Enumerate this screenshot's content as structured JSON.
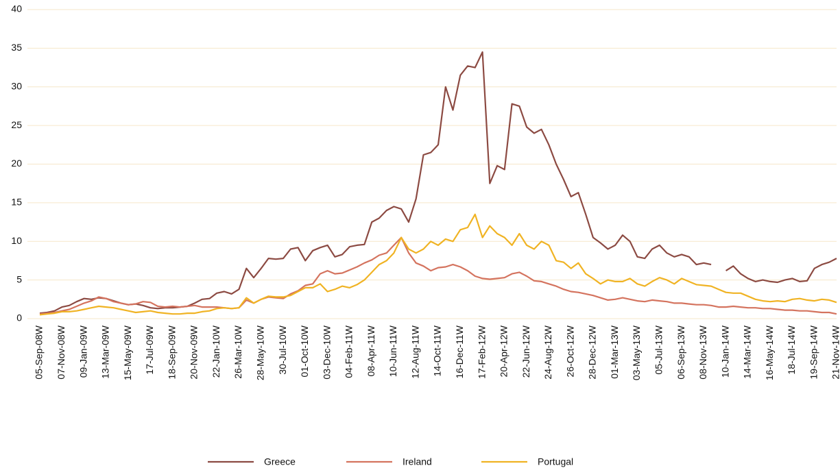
{
  "chart_data": {
    "type": "line",
    "categories": [
      "05-Sep-08W",
      null,
      null,
      "07-Nov-08W",
      null,
      null,
      "09-Jan-09W",
      null,
      null,
      "13-Mar-09W",
      null,
      null,
      "15-May-09W",
      null,
      null,
      "17-Jul-09W",
      null,
      null,
      "18-Sep-09W",
      null,
      null,
      "20-Nov-09W",
      null,
      null,
      "22-Jan-10W",
      null,
      null,
      "26-Mar-10W",
      null,
      null,
      "28-May-10W",
      null,
      null,
      "30-Jul-10W",
      null,
      null,
      "01-Oct-10W",
      null,
      null,
      "03-Dec-10W",
      null,
      null,
      "04-Feb-11W",
      null,
      null,
      "08-Apr-11W",
      null,
      null,
      "10-Jun-11W",
      null,
      null,
      "12-Aug-11W",
      null,
      null,
      "14-Oct-11W",
      null,
      null,
      "16-Dec-11W",
      null,
      null,
      "17-Feb-12W",
      null,
      null,
      "20-Apr-12W",
      null,
      null,
      "22-Jun-12W",
      null,
      null,
      "24-Aug-12W",
      null,
      null,
      "26-Oct-12W",
      null,
      null,
      "28-Dec-12W",
      null,
      null,
      "01-Mar-13W",
      null,
      null,
      "03-May-13W",
      null,
      null,
      "05-Jul-13W",
      null,
      null,
      "06-Sep-13W",
      null,
      null,
      "08-Nov-13W",
      null,
      null,
      "10-Jan-14W",
      null,
      null,
      "14-Mar-14W",
      null,
      null,
      "16-May-14W",
      null,
      null,
      "18-Jul-14W",
      null,
      null,
      "19-Sep-14W",
      null,
      null,
      "21-Nov-14W"
    ],
    "series": [
      {
        "name": "Greece",
        "color": "#8c4a42",
        "values": [
          0.7,
          0.8,
          1.0,
          1.5,
          1.7,
          2.2,
          2.6,
          2.5,
          2.7,
          2.6,
          2.3,
          2.0,
          1.8,
          1.9,
          1.7,
          1.4,
          1.3,
          1.4,
          1.4,
          1.5,
          1.6,
          2.0,
          2.5,
          2.6,
          3.3,
          3.5,
          3.2,
          3.8,
          6.5,
          5.3,
          6.5,
          7.8,
          7.7,
          7.8,
          9.0,
          9.2,
          7.5,
          8.8,
          9.2,
          9.5,
          8.0,
          8.3,
          9.3,
          9.5,
          9.6,
          12.5,
          13.0,
          14.0,
          14.5,
          14.2,
          12.5,
          15.5,
          21.2,
          21.5,
          22.5,
          30.0,
          27.0,
          31.5,
          32.7,
          32.5,
          34.5,
          17.5,
          19.8,
          19.3,
          27.8,
          27.5,
          24.8,
          24.0,
          24.5,
          22.5,
          20.0,
          18.0,
          15.8,
          16.3,
          13.5,
          10.5,
          9.8,
          9.0,
          9.5,
          10.8,
          10.0,
          8.0,
          7.8,
          9.0,
          9.5,
          8.5,
          8.0,
          8.3,
          8.0,
          7.0,
          7.2,
          7.0,
          null,
          6.2,
          6.8,
          5.8,
          5.2,
          4.8,
          5.0,
          4.8,
          4.7,
          5.0,
          5.2,
          4.8,
          4.9,
          6.5,
          7.0,
          7.3,
          7.8
        ]
      },
      {
        "name": "Ireland",
        "color": "#d4735e",
        "values": [
          0.6,
          0.7,
          0.8,
          1.0,
          1.2,
          1.6,
          2.0,
          2.3,
          2.8,
          2.6,
          2.2,
          2.0,
          1.8,
          1.9,
          2.2,
          2.1,
          1.6,
          1.5,
          1.6,
          1.5,
          1.6,
          1.7,
          1.5,
          1.5,
          1.5,
          1.4,
          1.3,
          1.4,
          2.4,
          2.0,
          2.5,
          2.8,
          2.7,
          2.6,
          3.2,
          3.6,
          4.3,
          4.5,
          5.8,
          6.2,
          5.8,
          5.9,
          6.3,
          6.7,
          7.2,
          7.6,
          8.2,
          8.5,
          9.5,
          10.5,
          8.5,
          7.2,
          6.8,
          6.2,
          6.6,
          6.7,
          7.0,
          6.7,
          6.2,
          5.5,
          5.2,
          5.1,
          5.2,
          5.3,
          5.8,
          6.0,
          5.5,
          4.9,
          4.8,
          4.5,
          4.2,
          3.8,
          3.5,
          3.4,
          3.2,
          3.0,
          2.7,
          2.4,
          2.5,
          2.7,
          2.5,
          2.3,
          2.2,
          2.4,
          2.3,
          2.2,
          2.0,
          2.0,
          1.9,
          1.8,
          1.8,
          1.7,
          1.5,
          1.5,
          1.6,
          1.5,
          1.4,
          1.4,
          1.3,
          1.3,
          1.2,
          1.1,
          1.1,
          1.0,
          1.0,
          0.9,
          0.8,
          0.8,
          0.6
        ]
      },
      {
        "name": "Portugal",
        "color": "#f0b323",
        "values": [
          0.5,
          0.6,
          0.7,
          0.9,
          0.9,
          1.0,
          1.2,
          1.4,
          1.6,
          1.5,
          1.4,
          1.2,
          1.0,
          0.8,
          0.9,
          1.0,
          0.8,
          0.7,
          0.6,
          0.6,
          0.7,
          0.7,
          0.9,
          1.0,
          1.3,
          1.4,
          1.3,
          1.4,
          2.7,
          2.0,
          2.5,
          2.9,
          2.8,
          2.8,
          3.0,
          3.5,
          4.0,
          4.0,
          4.5,
          3.5,
          3.8,
          4.2,
          4.0,
          4.4,
          5.0,
          6.0,
          7.0,
          7.5,
          8.5,
          10.5,
          9.0,
          8.5,
          9.0,
          10.0,
          9.5,
          10.3,
          10.0,
          11.5,
          11.8,
          13.5,
          10.5,
          12.0,
          11.0,
          10.5,
          9.5,
          11.0,
          9.5,
          9.0,
          10.0,
          9.5,
          7.5,
          7.3,
          6.5,
          7.2,
          5.8,
          5.2,
          4.5,
          5.0,
          4.8,
          4.8,
          5.2,
          4.5,
          4.2,
          4.8,
          5.3,
          5.0,
          4.5,
          5.2,
          4.8,
          4.4,
          4.3,
          4.2,
          3.8,
          3.4,
          3.3,
          3.3,
          2.9,
          2.5,
          2.3,
          2.2,
          2.3,
          2.2,
          2.5,
          2.6,
          2.4,
          2.3,
          2.5,
          2.4,
          2.1
        ]
      }
    ],
    "ylim": [
      0,
      40
    ],
    "yticks": [
      0,
      5,
      10,
      15,
      20,
      25,
      30,
      35,
      40
    ],
    "grid": true,
    "legend": "bottom"
  }
}
